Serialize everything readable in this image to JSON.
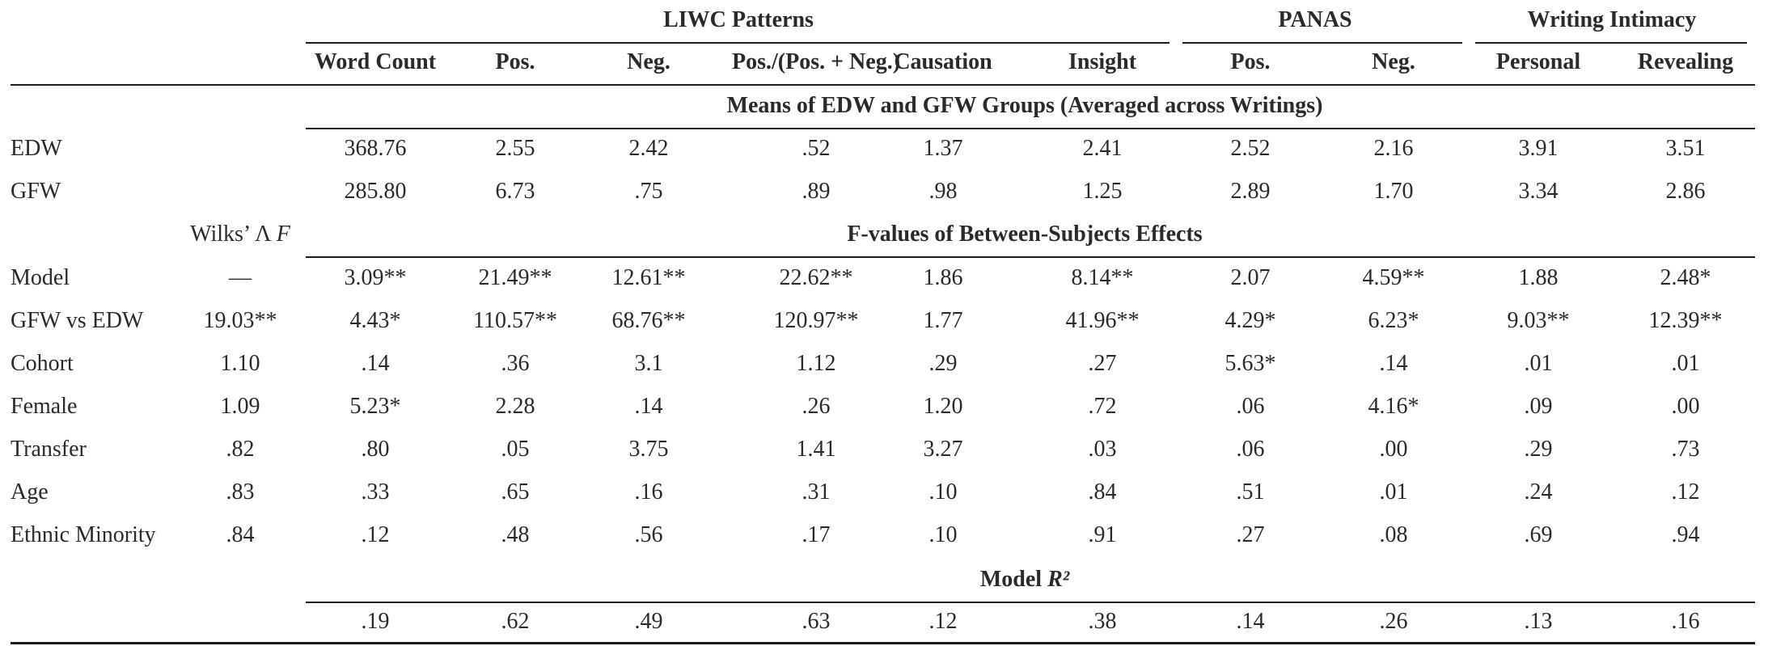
{
  "group_headers": [
    "LIWC Patterns",
    "PANAS",
    "Writing Intimacy"
  ],
  "columns": [
    "Word Count",
    "Pos.",
    "Neg.",
    "Pos./(Pos. + Neg.)",
    "Causation",
    "Insight",
    "Pos.",
    "Neg.",
    "Personal",
    "Revealing"
  ],
  "sections": {
    "means": "Means of EDW and GFW Groups (Averaged across Writings)",
    "fvalues": "F-values of Between-Subjects Effects",
    "r2": "Model R²"
  },
  "wilks_label": "Wilks’ Λ F",
  "means_rows": [
    {
      "label": "EDW",
      "values": [
        "368.76",
        "2.55",
        "2.42",
        ".52",
        "1.37",
        "2.41",
        "2.52",
        "2.16",
        "3.91",
        "3.51"
      ]
    },
    {
      "label": "GFW",
      "values": [
        "285.80",
        "6.73",
        ".75",
        ".89",
        ".98",
        "1.25",
        "2.89",
        "1.70",
        "3.34",
        "2.86"
      ]
    }
  ],
  "f_rows": [
    {
      "label": "Model",
      "wilks": "—",
      "values": [
        "3.09**",
        "21.49**",
        "12.61**",
        "22.62**",
        "1.86",
        "8.14**",
        "2.07",
        "4.59**",
        "1.88",
        "2.48*"
      ]
    },
    {
      "label": "GFW vs EDW",
      "wilks": "19.03**",
      "values": [
        "4.43*",
        "110.57**",
        "68.76**",
        "120.97**",
        "1.77",
        "41.96**",
        "4.29*",
        "6.23*",
        "9.03**",
        "12.39**"
      ]
    },
    {
      "label": "Cohort",
      "wilks": "1.10",
      "values": [
        ".14",
        ".36",
        "3.1",
        "1.12",
        ".29",
        ".27",
        "5.63*",
        ".14",
        ".01",
        ".01"
      ]
    },
    {
      "label": "Female",
      "wilks": "1.09",
      "values": [
        "5.23*",
        "2.28",
        ".14",
        ".26",
        "1.20",
        ".72",
        ".06",
        "4.16*",
        ".09",
        ".00"
      ]
    },
    {
      "label": "Transfer",
      "wilks": ".82",
      "values": [
        ".80",
        ".05",
        "3.75",
        "1.41",
        "3.27",
        ".03",
        ".06",
        ".00",
        ".29",
        ".73"
      ]
    },
    {
      "label": "Age",
      "wilks": ".83",
      "values": [
        ".33",
        ".65",
        ".16",
        ".31",
        ".10",
        ".84",
        ".51",
        ".01",
        ".24",
        ".12"
      ]
    },
    {
      "label": "Ethnic Minority",
      "wilks": ".84",
      "values": [
        ".12",
        ".48",
        ".56",
        ".17",
        ".10",
        ".91",
        ".27",
        ".08",
        ".69",
        ".94"
      ]
    }
  ],
  "r2_values": [
    ".19",
    ".62",
    ".49",
    ".63",
    ".12",
    ".38",
    ".14",
    ".26",
    ".13",
    ".16"
  ]
}
